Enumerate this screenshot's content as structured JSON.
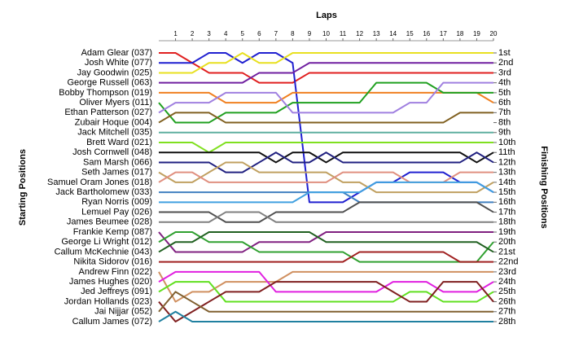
{
  "chart_data": {
    "type": "line",
    "title": "Laps",
    "y_label": "Starting Positions",
    "y2_label": "Finishing Positions",
    "x": [
      0,
      1,
      2,
      3,
      4,
      5,
      6,
      7,
      8,
      9,
      10,
      11,
      12,
      13,
      14,
      15,
      16,
      17,
      18,
      19,
      20
    ],
    "xlim": [
      0,
      20
    ],
    "xticks": [
      1,
      2,
      3,
      4,
      5,
      6,
      7,
      8,
      9,
      10,
      11,
      12,
      13,
      14,
      15,
      16,
      17,
      18,
      19,
      20
    ],
    "ylim": [
      28,
      1
    ],
    "y2lim": [
      28,
      1
    ],
    "y2ticks": [
      {
        "value": 1,
        "label": "1st"
      },
      {
        "value": 2,
        "label": "2nd"
      },
      {
        "value": 3,
        "label": "3rd"
      },
      {
        "value": 4,
        "label": "4th"
      },
      {
        "value": 5,
        "label": "5th"
      },
      {
        "value": 6,
        "label": "6th"
      },
      {
        "value": 7,
        "label": "7th"
      },
      {
        "value": 8,
        "label": "8th"
      },
      {
        "value": 9,
        "label": "9th"
      },
      {
        "value": 10,
        "label": "10th"
      },
      {
        "value": 11,
        "label": "11th"
      },
      {
        "value": 12,
        "label": "12th"
      },
      {
        "value": 13,
        "label": "13th"
      },
      {
        "value": 14,
        "label": "14th"
      },
      {
        "value": 15,
        "label": "15th"
      },
      {
        "value": 16,
        "label": "16th"
      },
      {
        "value": 17,
        "label": "17th"
      },
      {
        "value": 18,
        "label": "18th"
      },
      {
        "value": 19,
        "label": "19th"
      },
      {
        "value": 20,
        "label": "20th"
      },
      {
        "value": 21,
        "label": "21st"
      },
      {
        "value": 22,
        "label": "22nd"
      },
      {
        "value": 23,
        "label": "23rd"
      },
      {
        "value": 24,
        "label": "24th"
      },
      {
        "value": 25,
        "label": "25th"
      },
      {
        "value": 26,
        "label": "26th"
      },
      {
        "value": 27,
        "label": "27th"
      },
      {
        "value": 28,
        "label": "28th"
      }
    ],
    "series": [
      {
        "name": "Adam Glear (037)",
        "color": "#e02020",
        "values": [
          1,
          1,
          2,
          3,
          3,
          3,
          4,
          4,
          4,
          3,
          3,
          3,
          3,
          3,
          3,
          3,
          3,
          3,
          3,
          3,
          3
        ]
      },
      {
        "name": "Josh White (077)",
        "color": "#2020d0",
        "values": [
          2,
          2,
          2,
          1,
          1,
          2,
          1,
          1,
          2,
          16,
          16,
          16,
          15,
          14,
          14,
          13,
          13,
          13,
          14,
          14,
          15
        ]
      },
      {
        "name": "Jay Goodwin (025)",
        "color": "#e8e020",
        "values": [
          3,
          3,
          3,
          2,
          2,
          1,
          2,
          2,
          1,
          1,
          1,
          1,
          1,
          1,
          1,
          1,
          1,
          1,
          1,
          1,
          1
        ]
      },
      {
        "name": "George Russell (063)",
        "color": "#7020a0",
        "values": [
          4,
          4,
          4,
          4,
          4,
          4,
          3,
          3,
          3,
          2,
          2,
          2,
          2,
          2,
          2,
          2,
          2,
          2,
          2,
          2,
          2
        ]
      },
      {
        "name": "Bobby Thompson (019)",
        "color": "#f08020",
        "values": [
          5,
          5,
          5,
          5,
          6,
          6,
          6,
          6,
          5,
          5,
          5,
          5,
          5,
          5,
          5,
          5,
          5,
          5,
          5,
          5,
          6
        ]
      },
      {
        "name": "Oliver Myers (011)",
        "color": "#20a020",
        "values": [
          6,
          8,
          8,
          8,
          7,
          7,
          7,
          7,
          6,
          6,
          6,
          6,
          6,
          4,
          4,
          4,
          4,
          5,
          5,
          5,
          5
        ]
      },
      {
        "name": "Ethan Patterson (027)",
        "color": "#a080e0",
        "values": [
          7,
          6,
          6,
          6,
          5,
          5,
          5,
          5,
          7,
          7,
          7,
          7,
          7,
          7,
          7,
          6,
          6,
          4,
          4,
          4,
          4
        ]
      },
      {
        "name": "Zubair Hoque (004)",
        "color": "#806020",
        "values": [
          8,
          7,
          7,
          7,
          8,
          8,
          8,
          8,
          8,
          8,
          8,
          8,
          8,
          8,
          8,
          8,
          8,
          8,
          7,
          7,
          7
        ]
      },
      {
        "name": "Jack Mitchell (035)",
        "color": "#60b0a0",
        "values": [
          9,
          9,
          9,
          9,
          9,
          9,
          9,
          9,
          9,
          9,
          9,
          9,
          9,
          9,
          9,
          9,
          9,
          9,
          9,
          9,
          9
        ]
      },
      {
        "name": "Brett Ward (021)",
        "color": "#80e020",
        "values": [
          10,
          10,
          10,
          11,
          10,
          10,
          10,
          10,
          10,
          10,
          10,
          10,
          10,
          10,
          10,
          10,
          10,
          10,
          10,
          10,
          10
        ]
      },
      {
        "name": "Josh Cornwell (048)",
        "color": "#101010",
        "values": [
          11,
          11,
          11,
          11,
          11,
          11,
          11,
          12,
          11,
          11,
          12,
          11,
          11,
          11,
          11,
          11,
          11,
          11,
          11,
          12,
          11
        ]
      },
      {
        "name": "Sam Marsh (066)",
        "color": "#202080",
        "values": [
          12,
          12,
          12,
          12,
          13,
          13,
          12,
          11,
          12,
          12,
          11,
          12,
          12,
          12,
          12,
          12,
          12,
          12,
          12,
          11,
          12
        ]
      },
      {
        "name": "Seth James (017)",
        "color": "#c0a060",
        "values": [
          13,
          14,
          14,
          13,
          12,
          12,
          13,
          13,
          13,
          13,
          13,
          14,
          14,
          15,
          15,
          15,
          15,
          15,
          15,
          15,
          14
        ]
      },
      {
        "name": "Samuel Oram Jones (018)",
        "color": "#e09080",
        "values": [
          14,
          13,
          13,
          14,
          14,
          14,
          14,
          14,
          14,
          14,
          14,
          13,
          13,
          13,
          13,
          14,
          14,
          14,
          13,
          13,
          13
        ]
      },
      {
        "name": "Jack Bartholomew (033)",
        "color": "#4080c0",
        "values": [
          15,
          15,
          15,
          15,
          15,
          15,
          15,
          15,
          15,
          15,
          15,
          15,
          16,
          16,
          16,
          16,
          16,
          16,
          16,
          16,
          16
        ]
      },
      {
        "name": "Ryan Norris (009)",
        "color": "#40a0e0",
        "values": [
          16,
          16,
          16,
          16,
          16,
          16,
          16,
          16,
          16,
          15,
          15,
          15,
          15,
          14,
          14,
          14,
          14,
          14,
          14,
          14,
          15
        ]
      },
      {
        "name": "Lemuel Pay (026)",
        "color": "#505050",
        "values": [
          17,
          17,
          17,
          17,
          18,
          18,
          18,
          17,
          17,
          17,
          17,
          17,
          16,
          16,
          16,
          16,
          16,
          16,
          16,
          16,
          17
        ]
      },
      {
        "name": "James Beumee (028)",
        "color": "#808080",
        "values": [
          18,
          18,
          18,
          18,
          17,
          17,
          17,
          18,
          18,
          18,
          18,
          18,
          18,
          18,
          18,
          18,
          18,
          18,
          18,
          18,
          18
        ]
      },
      {
        "name": "Frankie Kemp (087)",
        "color": "#802080",
        "values": [
          19,
          21,
          21,
          21,
          21,
          21,
          20,
          20,
          20,
          20,
          19,
          19,
          19,
          19,
          19,
          19,
          19,
          19,
          19,
          19,
          19
        ]
      },
      {
        "name": "George Li Wright (012)",
        "color": "#30a030",
        "values": [
          20,
          19,
          19,
          20,
          20,
          20,
          21,
          21,
          21,
          21,
          21,
          21,
          22,
          22,
          22,
          22,
          22,
          22,
          22,
          22,
          20
        ]
      },
      {
        "name": "Callum McKechnie (043)",
        "color": "#206020",
        "values": [
          21,
          20,
          20,
          19,
          19,
          19,
          19,
          19,
          19,
          19,
          20,
          20,
          20,
          20,
          20,
          20,
          20,
          20,
          20,
          20,
          21
        ]
      },
      {
        "name": "Nikita Sidorov (016)",
        "color": "#a02020",
        "values": [
          22,
          22,
          22,
          22,
          22,
          22,
          22,
          22,
          22,
          22,
          22,
          22,
          21,
          21,
          21,
          21,
          21,
          21,
          22,
          22,
          22
        ]
      },
      {
        "name": "Andrew Finn (022)",
        "color": "#d09060",
        "values": [
          23,
          26,
          25,
          25,
          24,
          24,
          24,
          24,
          23,
          23,
          23,
          23,
          23,
          23,
          23,
          23,
          23,
          23,
          23,
          23,
          23
        ]
      },
      {
        "name": "James Hughes (020)",
        "color": "#e020e0",
        "values": [
          24,
          23,
          23,
          23,
          23,
          23,
          23,
          25,
          25,
          25,
          25,
          25,
          25,
          25,
          24,
          24,
          24,
          25,
          25,
          25,
          24
        ]
      },
      {
        "name": "Jed Jeffreys (091)",
        "color": "#60e020",
        "values": [
          25,
          24,
          24,
          24,
          26,
          26,
          26,
          26,
          26,
          26,
          26,
          26,
          26,
          26,
          26,
          25,
          25,
          26,
          26,
          26,
          25
        ]
      },
      {
        "name": "Jordan Hollands (023)",
        "color": "#802020",
        "values": [
          26,
          28,
          27,
          26,
          25,
          25,
          25,
          24,
          24,
          24,
          24,
          24,
          24,
          24,
          25,
          26,
          26,
          24,
          24,
          24,
          26
        ]
      },
      {
        "name": "Jai Nijjar (052)",
        "color": "#806030",
        "values": [
          27,
          25,
          26,
          27,
          27,
          27,
          27,
          27,
          27,
          27,
          27,
          27,
          27,
          27,
          27,
          27,
          27,
          27,
          27,
          27,
          27
        ]
      },
      {
        "name": "Callum James (072)",
        "color": "#2080a0",
        "values": [
          28,
          27,
          28,
          28,
          28,
          28,
          28,
          28,
          28,
          28,
          28,
          28,
          28,
          28,
          28,
          28,
          28,
          28,
          28,
          28,
          28
        ]
      }
    ]
  }
}
